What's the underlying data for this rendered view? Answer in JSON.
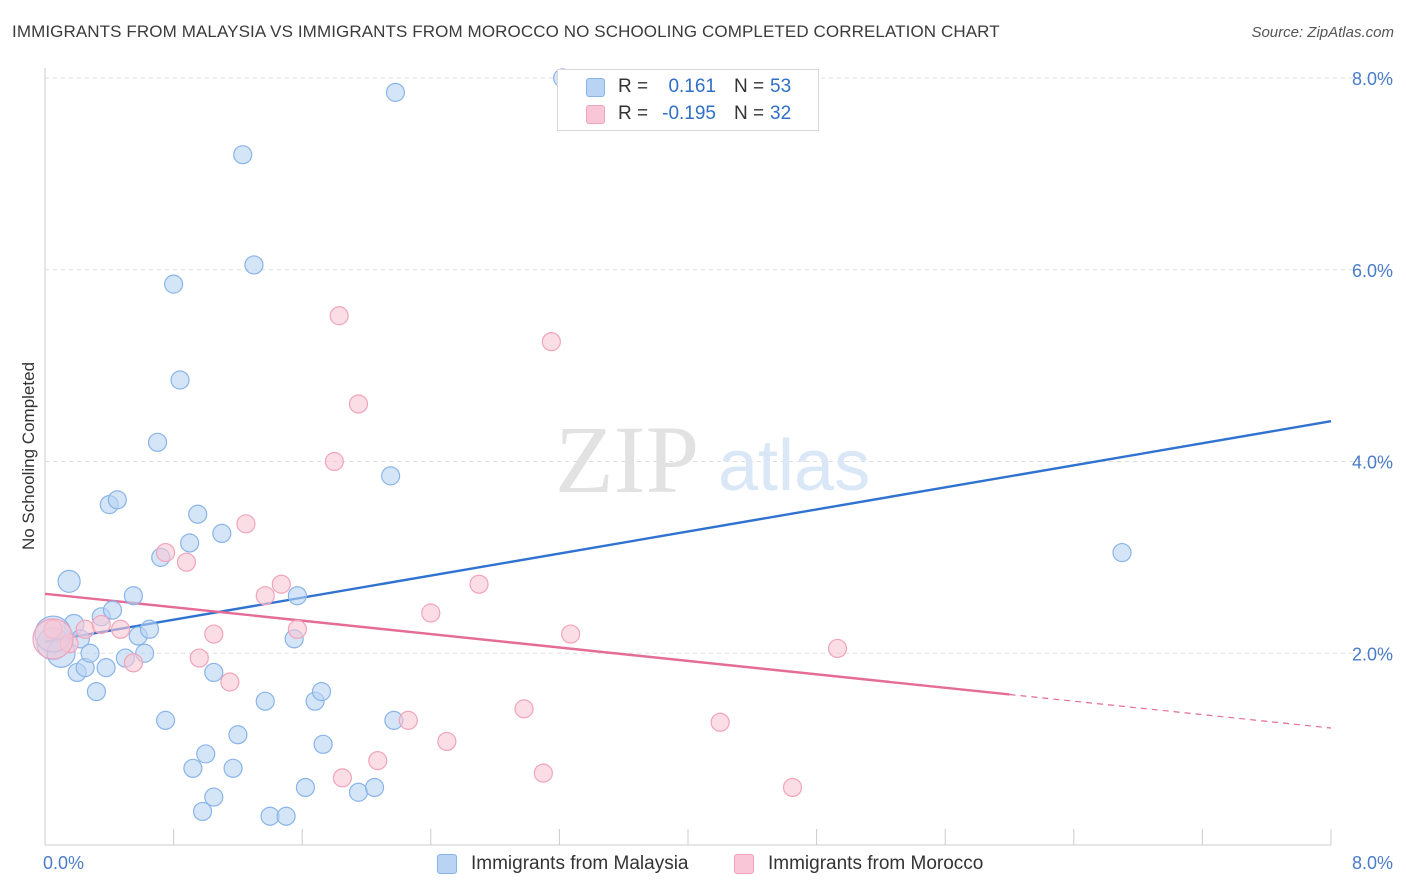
{
  "header": {
    "title": "IMMIGRANTS FROM MALAYSIA VS IMMIGRANTS FROM MOROCCO NO SCHOOLING COMPLETED CORRELATION CHART",
    "source": "Source: ZipAtlas.com"
  },
  "legend": {
    "rows": [
      {
        "r_label": "R =",
        "r_value": "0.161",
        "n_label": "N =",
        "n_value": "53"
      },
      {
        "r_label": "R =",
        "r_value": "-0.195",
        "n_label": "N =",
        "n_value": "32"
      }
    ]
  },
  "bottom_legend": {
    "malaysia": "Immigrants from Malaysia",
    "morocco": "Immigrants from Morocco"
  },
  "colors": {
    "malaysia_fill": "#b8d3f4",
    "malaysia_stroke": "#8ab4e8",
    "malaysia_line": "#2f72d0",
    "morocco_fill": "#f8c6d6",
    "morocco_stroke": "#f0a4bc",
    "morocco_line": "#e46c97",
    "tick_label": "#4a7cc9",
    "grid": "#dddddd"
  },
  "chart_data": {
    "type": "scatter",
    "watermark": "ZIPatlas",
    "ylabel": "No Schooling Completed",
    "xlim": [
      0,
      8
    ],
    "ylim": [
      0,
      8
    ],
    "x_tick_labels": [
      {
        "value": 0,
        "label": "0.0%"
      },
      {
        "value": 8,
        "label": "8.0%"
      }
    ],
    "y_tick_labels": [
      {
        "value": 2,
        "label": "2.0%"
      },
      {
        "value": 4,
        "label": "4.0%"
      },
      {
        "value": 6,
        "label": "6.0%"
      },
      {
        "value": 8,
        "label": "8.0%"
      }
    ],
    "grid": true,
    "series": [
      {
        "name": "Immigrants from Malaysia",
        "points": [
          [
            0.05,
            2.1
          ],
          [
            0.1,
            2.0
          ],
          [
            0.15,
            2.75
          ],
          [
            0.18,
            2.3
          ],
          [
            0.2,
            1.8
          ],
          [
            0.22,
            2.15
          ],
          [
            0.25,
            1.85
          ],
          [
            0.28,
            2.0
          ],
          [
            0.32,
            1.6
          ],
          [
            0.35,
            2.38
          ],
          [
            0.38,
            1.85
          ],
          [
            0.4,
            3.55
          ],
          [
            0.42,
            2.45
          ],
          [
            0.45,
            3.6
          ],
          [
            0.5,
            1.95
          ],
          [
            0.55,
            2.6
          ],
          [
            0.58,
            2.18
          ],
          [
            0.62,
            2.0
          ],
          [
            0.65,
            2.25
          ],
          [
            0.7,
            4.2
          ],
          [
            0.72,
            3.0
          ],
          [
            0.75,
            1.3
          ],
          [
            0.8,
            5.85
          ],
          [
            0.84,
            4.85
          ],
          [
            0.9,
            3.15
          ],
          [
            0.92,
            0.8
          ],
          [
            0.95,
            3.45
          ],
          [
            0.98,
            0.35
          ],
          [
            1.0,
            0.95
          ],
          [
            1.05,
            1.8
          ],
          [
            1.05,
            0.5
          ],
          [
            1.1,
            3.25
          ],
          [
            1.17,
            0.8
          ],
          [
            1.2,
            1.15
          ],
          [
            1.23,
            7.2
          ],
          [
            1.3,
            6.05
          ],
          [
            1.37,
            1.5
          ],
          [
            1.4,
            0.3
          ],
          [
            1.5,
            0.3
          ],
          [
            1.55,
            2.15
          ],
          [
            1.57,
            2.6
          ],
          [
            1.62,
            0.6
          ],
          [
            1.68,
            1.5
          ],
          [
            1.72,
            1.6
          ],
          [
            1.73,
            1.05
          ],
          [
            1.95,
            0.55
          ],
          [
            2.05,
            0.6
          ],
          [
            2.15,
            3.85
          ],
          [
            2.17,
            1.3
          ],
          [
            2.18,
            7.85
          ],
          [
            3.22,
            8.0
          ],
          [
            6.7,
            3.05
          ],
          [
            0.05,
            2.2
          ]
        ],
        "sizes": [
          16,
          14,
          11,
          10,
          9,
          9,
          9,
          9,
          9,
          9,
          9,
          9,
          9,
          9,
          9,
          9,
          9,
          9,
          9,
          9,
          9,
          9,
          9,
          9,
          9,
          9,
          9,
          9,
          9,
          9,
          9,
          9,
          9,
          9,
          9,
          9,
          9,
          9,
          9,
          9,
          9,
          9,
          9,
          9,
          9,
          9,
          9,
          9,
          9,
          9,
          9,
          9,
          18
        ],
        "trend": {
          "x0": 0,
          "y0": 2.12,
          "x1": 8,
          "y1": 4.42,
          "solid_to": 8
        }
      },
      {
        "name": "Immigrants from Morocco",
        "points": [
          [
            0.05,
            2.25
          ],
          [
            0.15,
            2.1
          ],
          [
            0.25,
            2.25
          ],
          [
            0.35,
            2.3
          ],
          [
            0.47,
            2.25
          ],
          [
            0.55,
            1.9
          ],
          [
            0.75,
            3.05
          ],
          [
            0.88,
            2.95
          ],
          [
            0.96,
            1.95
          ],
          [
            1.05,
            2.2
          ],
          [
            1.15,
            1.7
          ],
          [
            1.25,
            3.35
          ],
          [
            1.37,
            2.6
          ],
          [
            1.47,
            2.72
          ],
          [
            1.57,
            2.25
          ],
          [
            1.8,
            4.0
          ],
          [
            1.83,
            5.52
          ],
          [
            1.85,
            0.7
          ],
          [
            1.95,
            4.6
          ],
          [
            2.07,
            0.88
          ],
          [
            2.26,
            1.3
          ],
          [
            2.4,
            2.42
          ],
          [
            2.5,
            1.08
          ],
          [
            2.7,
            2.72
          ],
          [
            2.98,
            1.42
          ],
          [
            3.1,
            0.75
          ],
          [
            3.15,
            5.25
          ],
          [
            3.27,
            2.2
          ],
          [
            4.2,
            1.28
          ],
          [
            4.65,
            0.6
          ],
          [
            4.93,
            2.05
          ],
          [
            0.05,
            2.15
          ]
        ],
        "sizes": [
          9,
          9,
          9,
          9,
          9,
          9,
          9,
          9,
          9,
          9,
          9,
          9,
          9,
          9,
          9,
          9,
          9,
          9,
          9,
          9,
          9,
          9,
          9,
          9,
          9,
          9,
          9,
          9,
          9,
          9,
          9,
          20
        ],
        "trend": {
          "x0": 0,
          "y0": 2.62,
          "x1": 8,
          "y1": 1.22,
          "solid_to": 6.0
        }
      }
    ]
  }
}
